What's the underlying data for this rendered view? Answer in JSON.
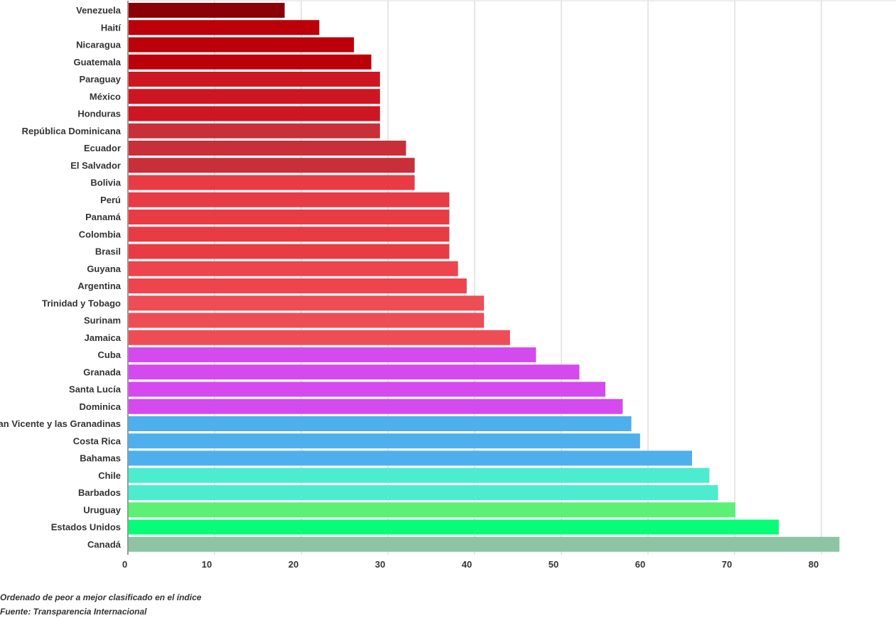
{
  "chart_data": {
    "type": "bar",
    "orientation": "horizontal",
    "title": "",
    "xlabel": "",
    "ylabel": "",
    "xlim": [
      0,
      85
    ],
    "grid": true,
    "ticks": [
      0,
      10,
      20,
      30,
      40,
      50,
      60,
      70,
      80
    ],
    "tick_labels": [
      "0",
      "10",
      "20",
      "30",
      "40",
      "50",
      "60",
      "70",
      "80"
    ],
    "categories": [
      "Venezuela",
      "Haití",
      "Nicaragua",
      "Guatemala",
      "Paraguay",
      "México",
      "Honduras",
      "República Dominicana",
      "Ecuador",
      "El Salvador",
      "Bolivia",
      "Perú",
      "Panamá",
      "Colombia",
      "Brasil",
      "Guyana",
      "Argentina",
      "Trinidad y Tobago",
      "Surinam",
      "Jamaica",
      "Cuba",
      "Granada",
      "Santa Lucía",
      "Dominica",
      "San Vicente y las Granadinas",
      "Costa Rica",
      "Bahamas",
      "Chile",
      "Barbados",
      "Uruguay",
      "Estados Unidos",
      "Canadá"
    ],
    "values": [
      18,
      22,
      26,
      28,
      29,
      29,
      29,
      29,
      32,
      33,
      33,
      37,
      37,
      37,
      37,
      38,
      39,
      41,
      41,
      44,
      47,
      52,
      55,
      57,
      58,
      59,
      65,
      67,
      68,
      70,
      75,
      82
    ],
    "colors": [
      "#8b0008",
      "#bc0009",
      "#bc0009",
      "#bc0009",
      "#cd1622",
      "#cd1622",
      "#cd1622",
      "#c82f38",
      "#c82f38",
      "#c82f38",
      "#e93b44",
      "#e93b44",
      "#e93b44",
      "#e93b44",
      "#e93b44",
      "#ed444d",
      "#ed444d",
      "#ee4d56",
      "#ee4d56",
      "#ee4d56",
      "#d44aee",
      "#d44aee",
      "#d44aee",
      "#d44aee",
      "#4dafec",
      "#4dafec",
      "#4dafec",
      "#4ceccf",
      "#4ceccf",
      "#5af175",
      "#07fd77",
      "#8dc4a4"
    ]
  },
  "footer": {
    "note": "Ordenado de peor a mejor clasificado en el índice",
    "source": "Fuente: Transparencia Internacional"
  },
  "colors": {
    "gridline": "#cccccc",
    "axis": "#333333",
    "text": "#333333"
  }
}
